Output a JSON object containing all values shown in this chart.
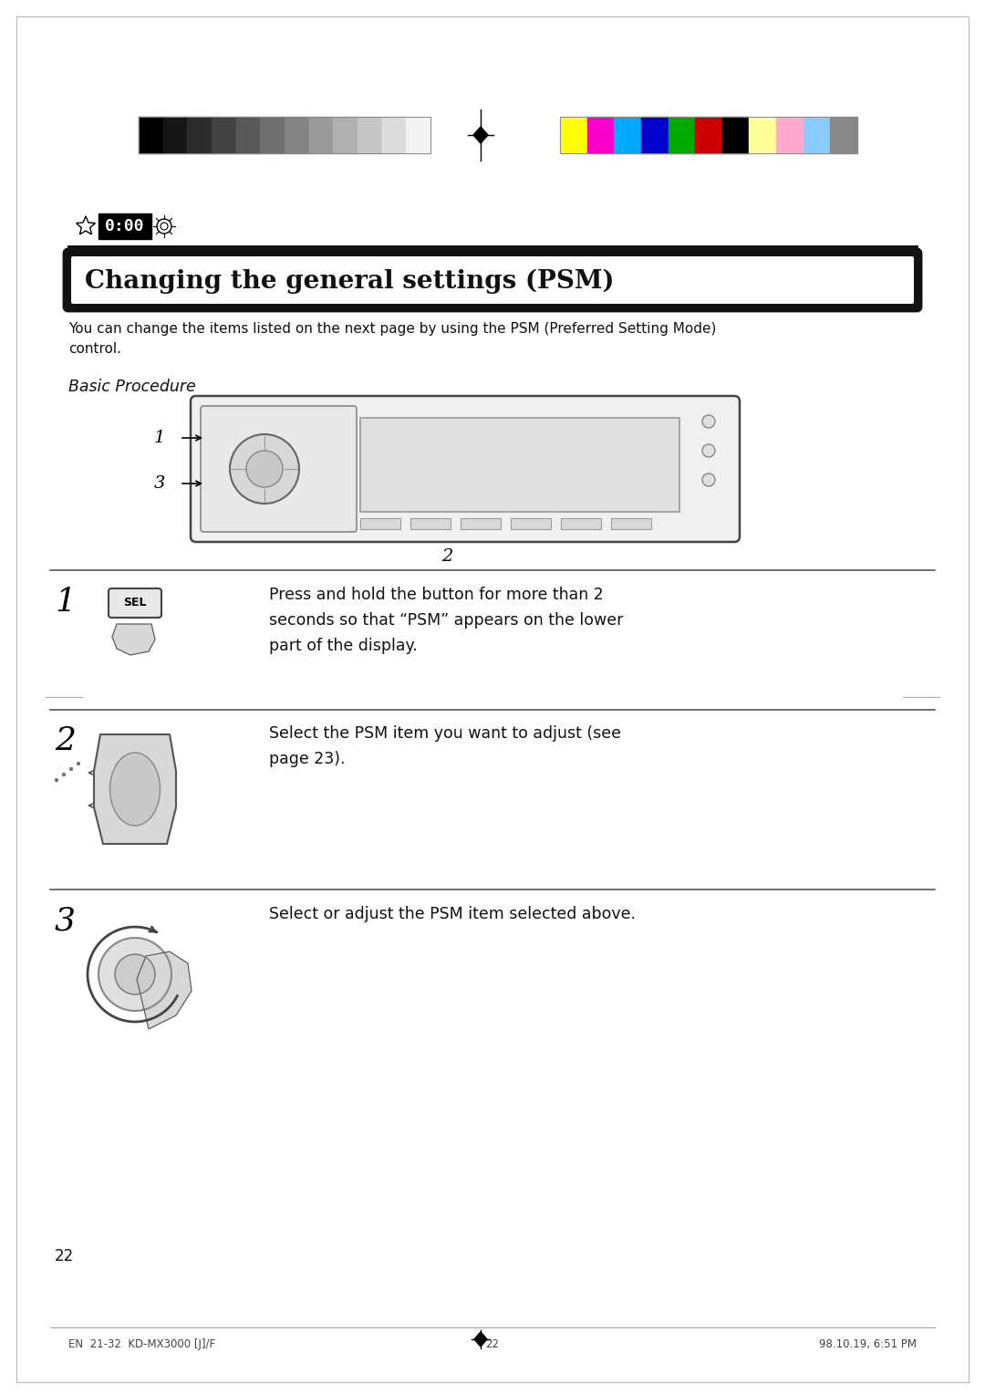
{
  "bg_color": "#ffffff",
  "grayscale_colors": [
    "#000000",
    "#161616",
    "#2c2c2c",
    "#424242",
    "#585858",
    "#6e6e6e",
    "#848484",
    "#9a9a9a",
    "#b0b0b0",
    "#c6c6c6",
    "#dcdcdc",
    "#f2f2f2"
  ],
  "color_swatches": [
    "#ffff00",
    "#ff00cc",
    "#00aaff",
    "#0000cc",
    "#00aa00",
    "#cc0000",
    "#000000",
    "#ffff99",
    "#ffaacc",
    "#88ccff",
    "#888888"
  ],
  "title": "Changing the general settings (PSM)",
  "intro_text": "You can change the items listed on the next page by using the PSM (Preferred Setting Mode)\ncontrol.",
  "basic_procedure_label": "Basic Procedure",
  "step1_text": "Press and hold the button for more than 2\nseconds so that “PSM” appears on the lower\npart of the display.",
  "step2_text": "Select the PSM item you want to adjust (see\npage 23).",
  "step3_text": "Select or adjust the PSM item selected above.",
  "page_number": "22",
  "footer_left": "EN  21-32  KD-MX3000 [J]/F",
  "footer_center": "22",
  "footer_right": "98.10.19, 6:51 PM"
}
